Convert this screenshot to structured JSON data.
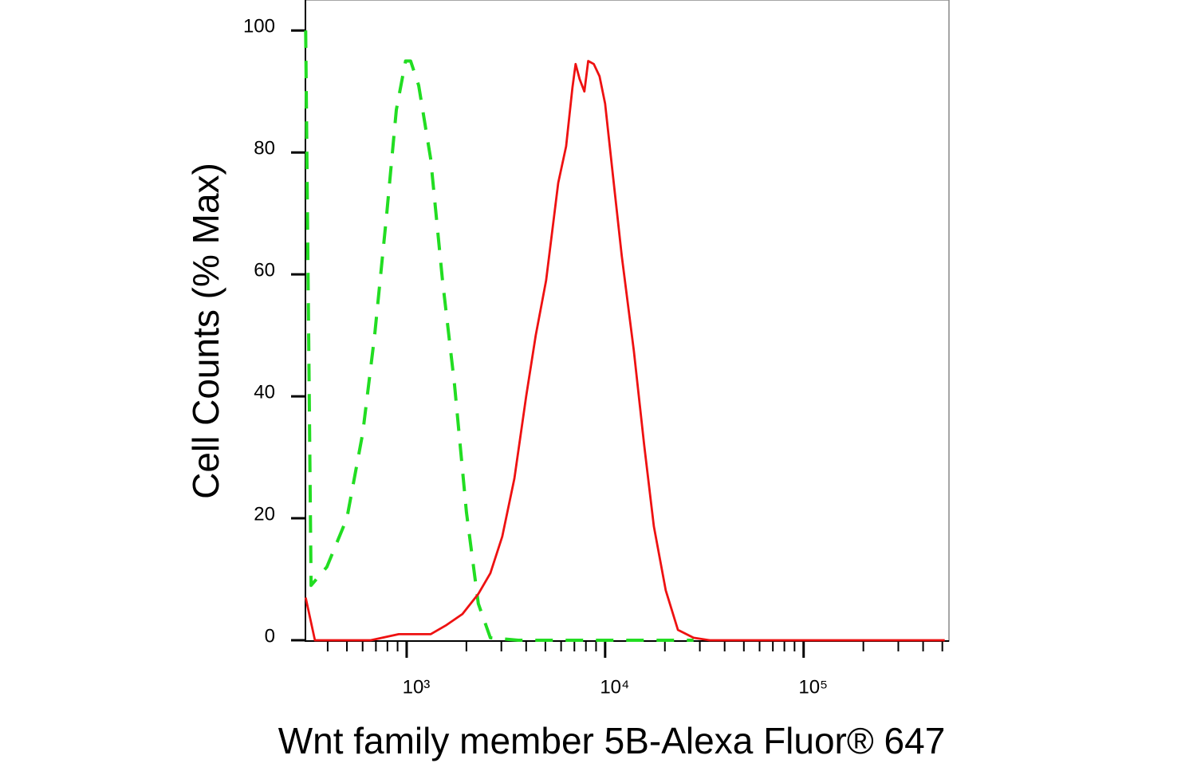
{
  "chart_data": {
    "type": "line",
    "ylabel": "Cell Counts (% Max)",
    "xlabel": "Wnt family member 5B-Alexa Fluor® 647",
    "xscale": "log",
    "xlim": [
      309,
      540000
    ],
    "ylim": [
      0,
      105
    ],
    "xticks": [
      {
        "value": 1000,
        "label": "10³"
      },
      {
        "value": 10000,
        "label": "10⁴"
      },
      {
        "value": 100000,
        "label": "10⁵"
      }
    ],
    "xminor": [
      400,
      500,
      600,
      700,
      800,
      900,
      2000,
      3000,
      4000,
      5000,
      6000,
      7000,
      8000,
      9000,
      20000,
      30000,
      40000,
      50000,
      60000,
      70000,
      80000,
      90000,
      200000,
      300000,
      400000,
      500000
    ],
    "yticks": [
      0,
      20,
      40,
      60,
      80,
      100
    ],
    "series": [
      {
        "color": "#22dd22",
        "dash": true,
        "x": [
          310,
          330,
          396,
          500,
          601,
          690,
          794,
          887,
          988,
          1047,
          1149,
          1320,
          1516,
          1742,
          2000,
          2297,
          2640,
          3650,
          27900
        ],
        "values": [
          100,
          9,
          12,
          20,
          34,
          50,
          70,
          87,
          95,
          95,
          91,
          79,
          59,
          42,
          21,
          6,
          0.4,
          0,
          0
        ]
      },
      {
        "color": "#ee1111",
        "dash": false,
        "x": [
          310,
          345,
          659,
          912,
          1320,
          1587,
          1910,
          2297,
          2640,
          3030,
          3487,
          4000,
          4470,
          5040,
          5800,
          6360,
          6840,
          7100,
          7440,
          7860,
          8220,
          8770,
          9370,
          10000,
          10970,
          12130,
          13950,
          15730,
          17590,
          20200,
          23270,
          27900,
          33650,
          514000
        ],
        "values": [
          7,
          0,
          0,
          1,
          1,
          2.5,
          4.3,
          7.6,
          11,
          17,
          26.5,
          40,
          50,
          59,
          75,
          81,
          90.6,
          94.5,
          92,
          90,
          95,
          94.5,
          92.5,
          88,
          76,
          63,
          47.5,
          32,
          18.7,
          8.2,
          1.7,
          0.4,
          0,
          0
        ]
      }
    ]
  }
}
